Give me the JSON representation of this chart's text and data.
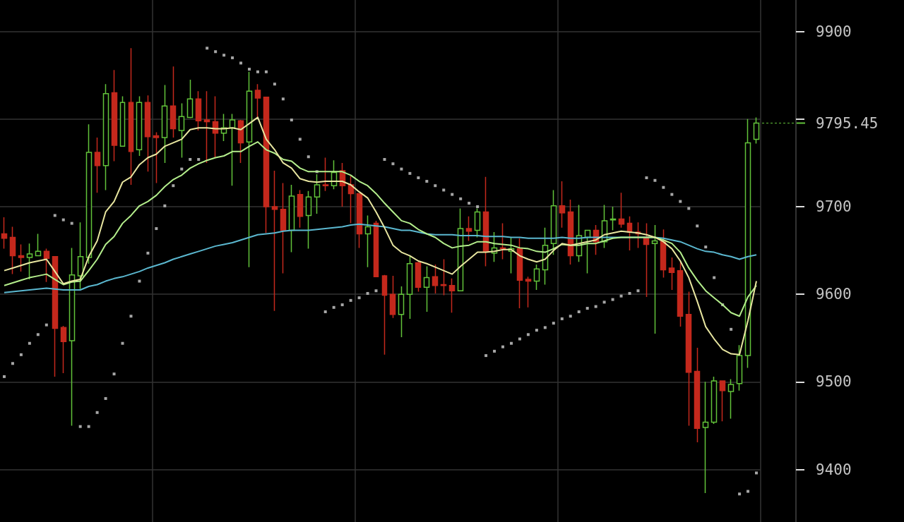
{
  "chart_data": {
    "type": "candlestick",
    "categories": [
      null,
      null,
      null,
      null,
      null,
      null,
      null,
      null,
      null,
      null,
      null,
      null,
      null,
      null,
      null,
      null,
      null,
      null,
      null,
      null,
      null,
      null,
      null,
      null,
      null,
      null,
      null,
      null,
      null,
      null,
      null,
      null,
      null,
      null,
      null,
      null,
      null,
      null,
      null,
      null,
      null,
      null,
      null,
      null,
      null,
      null,
      null,
      null,
      null,
      null,
      null,
      null,
      null,
      null,
      null,
      null,
      null,
      null,
      null,
      null,
      null,
      null,
      null,
      null,
      null,
      null,
      null,
      null,
      null,
      null,
      null,
      null,
      null,
      null,
      null,
      null,
      null,
      null,
      null,
      null,
      null,
      null,
      null,
      null,
      null,
      null,
      null,
      null,
      null,
      null
    ],
    "ohlc": [
      [
        9669,
        9688,
        9652,
        9664
      ],
      [
        9665,
        9677,
        9623,
        9644
      ],
      [
        9644,
        9657,
        9626,
        9642
      ],
      [
        9642,
        9658,
        9617,
        9646
      ],
      [
        9644,
        9669,
        9644,
        9649
      ],
      [
        9649,
        9652,
        9614,
        9641
      ],
      [
        9643,
        9643,
        9506,
        9561
      ],
      [
        9562,
        9564,
        9510,
        9546
      ],
      [
        9547,
        9653,
        9450,
        9622
      ],
      [
        9621,
        9682,
        9606,
        9643
      ],
      [
        9642,
        9794,
        9635,
        9762
      ],
      [
        9762,
        9779,
        9716,
        9747
      ],
      [
        9747,
        9840,
        9719,
        9829
      ],
      [
        9830,
        9856,
        9752,
        9770
      ],
      [
        9769,
        9826,
        9769,
        9819
      ],
      [
        9819,
        9881,
        9725,
        9763
      ],
      [
        9765,
        9826,
        9758,
        9819
      ],
      [
        9819,
        9827,
        9740,
        9780
      ],
      [
        9781,
        9785,
        9727,
        9779
      ],
      [
        9779,
        9839,
        9750,
        9815
      ],
      [
        9815,
        9860,
        9779,
        9789
      ],
      [
        9787,
        9818,
        9756,
        9803
      ],
      [
        9802,
        9845,
        9801,
        9823
      ],
      [
        9823,
        9832,
        9787,
        9798
      ],
      [
        9799,
        9832,
        9750,
        9797
      ],
      [
        9797,
        9826,
        9756,
        9784
      ],
      [
        9784,
        9806,
        9775,
        9790
      ],
      [
        9790,
        9806,
        9724,
        9799
      ],
      [
        9798,
        9799,
        9750,
        9773
      ],
      [
        9774,
        9854,
        9631,
        9832
      ],
      [
        9833,
        9840,
        9802,
        9824
      ],
      [
        9825,
        9825,
        9670,
        9700
      ],
      [
        9700,
        9741,
        9581,
        9697
      ],
      [
        9697,
        9727,
        9624,
        9673
      ],
      [
        9673,
        9725,
        9648,
        9712
      ],
      [
        9714,
        9719,
        9676,
        9689
      ],
      [
        9690,
        9718,
        9652,
        9711
      ],
      [
        9711,
        9737,
        9692,
        9725
      ],
      [
        9725,
        9756,
        9718,
        9724
      ],
      [
        9724,
        9753,
        9720,
        9739
      ],
      [
        9741,
        9750,
        9700,
        9724
      ],
      [
        9725,
        9735,
        9681,
        9715
      ],
      [
        9715,
        9715,
        9653,
        9669
      ],
      [
        9669,
        9690,
        9631,
        9677
      ],
      [
        9681,
        9684,
        9620,
        9620
      ],
      [
        9621,
        9622,
        9531,
        9599
      ],
      [
        9600,
        9621,
        9573,
        9577
      ],
      [
        9577,
        9609,
        9551,
        9600
      ],
      [
        9600,
        9644,
        9572,
        9635
      ],
      [
        9636,
        9637,
        9603,
        9608
      ],
      [
        9608,
        9632,
        9580,
        9619
      ],
      [
        9620,
        9634,
        9601,
        9610
      ],
      [
        9611,
        9640,
        9599,
        9610
      ],
      [
        9610,
        9618,
        9579,
        9604
      ],
      [
        9604,
        9698,
        9604,
        9675
      ],
      [
        9675,
        9689,
        9661,
        9672
      ],
      [
        9673,
        9698,
        9665,
        9694
      ],
      [
        9694,
        9734,
        9632,
        9649
      ],
      [
        9647,
        9671,
        9637,
        9653
      ],
      [
        9653,
        9681,
        9640,
        9652
      ],
      [
        9649,
        9665,
        9624,
        9652
      ],
      [
        9652,
        9664,
        9584,
        9616
      ],
      [
        9617,
        9620,
        9585,
        9615
      ],
      [
        9615,
        9634,
        9605,
        9629
      ],
      [
        9628,
        9676,
        9611,
        9656
      ],
      [
        9658,
        9719,
        9645,
        9701
      ],
      [
        9701,
        9729,
        9676,
        9693
      ],
      [
        9694,
        9708,
        9634,
        9644
      ],
      [
        9644,
        9702,
        9637,
        9667
      ],
      [
        9665,
        9673,
        9624,
        9673
      ],
      [
        9673,
        9679,
        9645,
        9660
      ],
      [
        9660,
        9702,
        9653,
        9684
      ],
      [
        9685,
        9700,
        9673,
        9686
      ],
      [
        9686,
        9716,
        9676,
        9680
      ],
      [
        9681,
        9689,
        9650,
        9671
      ],
      [
        9671,
        9682,
        9653,
        9669
      ],
      [
        9665,
        9681,
        9597,
        9657
      ],
      [
        9658,
        9679,
        9555,
        9661
      ],
      [
        9660,
        9674,
        9619,
        9628
      ],
      [
        9630,
        9642,
        9605,
        9625
      ],
      [
        9627,
        9637,
        9563,
        9575
      ],
      [
        9577,
        9603,
        9450,
        9511
      ],
      [
        9512,
        9539,
        9431,
        9447
      ],
      [
        9448,
        9500,
        9373,
        9454
      ],
      [
        9454,
        9506,
        9452,
        9501
      ],
      [
        9501,
        9501,
        9455,
        9490
      ],
      [
        9489,
        9503,
        9458,
        9497
      ],
      [
        9498,
        9542,
        9490,
        9530
      ],
      [
        9530,
        9800,
        9516,
        9773
      ],
      [
        9777,
        9802,
        9772,
        9795.45
      ]
    ],
    "colors": [
      "#c4281c",
      "#c4281c",
      "#c4281c",
      "#62c23a",
      "#62c23a",
      "#c4281c",
      "#c4281c",
      "#c4281c",
      "#62c23a",
      "#62c23a",
      "#62c23a",
      "#c4281c",
      "#62c23a",
      "#c4281c",
      "#62c23a",
      "#c4281c",
      "#62c23a",
      "#c4281c",
      "#c4281c",
      "#62c23a",
      "#c4281c",
      "#62c23a",
      "#62c23a",
      "#c4281c",
      "#c4281c",
      "#c4281c",
      "#62c23a",
      "#62c23a",
      "#c4281c",
      "#62c23a",
      "#c4281c",
      "#c4281c",
      "#c4281c",
      "#c4281c",
      "#62c23a",
      "#c4281c",
      "#62c23a",
      "#62c23a",
      "#c4281c",
      "#62c23a",
      "#c4281c",
      "#c4281c",
      "#c4281c",
      "#62c23a",
      "#c4281c",
      "#c4281c",
      "#c4281c",
      "#62c23a",
      "#62c23a",
      "#c4281c",
      "#62c23a",
      "#c4281c",
      "#c4281c",
      "#c4281c",
      "#62c23a",
      "#c4281c",
      "#62c23a",
      "#c4281c",
      "#62c23a",
      "#c4281c",
      "#62c23a",
      "#c4281c",
      "#c4281c",
      "#62c23a",
      "#62c23a",
      "#62c23a",
      "#c4281c",
      "#c4281c",
      "#62c23a",
      "#62c23a",
      "#c4281c",
      "#62c23a",
      "#62c23a",
      "#c4281c",
      "#c4281c",
      "#c4281c",
      "#c4281c",
      "#62c23a",
      "#c4281c",
      "#c4281c",
      "#c4281c",
      "#c4281c",
      "#c4281c",
      "#62c23a",
      "#62c23a",
      "#c4281c",
      "#62c23a",
      "#62c23a",
      "#62c23a",
      "#62c23a"
    ],
    "series": [
      {
        "type": "line",
        "color": "#5bb8d0",
        "values": [
          9602,
          9603,
          9604,
          9605,
          9606,
          9607,
          9606,
          9605,
          9605,
          9605,
          9609,
          9611,
          9615,
          9618,
          9620,
          9623,
          9626,
          9630,
          9633,
          9636,
          9640,
          9643,
          9646,
          9649,
          9652,
          9655,
          9657,
          9659,
          9662,
          9665,
          9668,
          9669,
          9670,
          9672,
          9673,
          9673,
          9673,
          9674,
          9675,
          9676,
          9677,
          9679,
          9680,
          9679,
          9678,
          9677,
          9675,
          9673,
          9673,
          9671,
          9669,
          9668,
          9668,
          9668,
          9667,
          9667,
          9667,
          9666,
          9666,
          9666,
          9665,
          9665,
          9664,
          9664,
          9664,
          9664,
          9665,
          9664,
          9664,
          9665,
          9665,
          9665,
          9665,
          9665,
          9665,
          9665,
          9665,
          9665,
          9664,
          9662,
          9660,
          9656,
          9652,
          9649,
          9648,
          9645,
          9643,
          9640,
          9643,
          9645
        ]
      },
      {
        "type": "line",
        "color": "#b4ee8c",
        "values": [
          9610,
          9613,
          9616,
          9619,
          9621,
          9623,
          9617,
          9611,
          9614,
          9615,
          9627,
          9640,
          9657,
          9666,
          9681,
          9690,
          9701,
          9706,
          9713,
          9723,
          9731,
          9736,
          9744,
          9749,
          9753,
          9756,
          9758,
          9763,
          9763,
          9769,
          9774,
          9765,
          9761,
          9754,
          9752,
          9744,
          9740,
          9740,
          9740,
          9740,
          9740,
          9736,
          9729,
          9724,
          9715,
          9704,
          9694,
          9684,
          9681,
          9674,
          9669,
          9665,
          9658,
          9653,
          9655,
          9656,
          9660,
          9660,
          9658,
          9657,
          9656,
          9653,
          9652,
          9649,
          9648,
          9652,
          9657,
          9656,
          9656,
          9658,
          9658,
          9661,
          9664,
          9665,
          9665,
          9665,
          9665,
          9665,
          9662,
          9658,
          9648,
          9630,
          9616,
          9604,
          9596,
          9588,
          9579,
          9575,
          9597,
          9610
        ]
      },
      {
        "type": "line",
        "color": "#e8e6a0",
        "values": [
          9627,
          9630,
          9633,
          9636,
          9638,
          9640,
          9626,
          9612,
          9615,
          9617,
          9643,
          9661,
          9694,
          9706,
          9728,
          9734,
          9748,
          9756,
          9760,
          9769,
          9773,
          9777,
          9788,
          9790,
          9790,
          9789,
          9789,
          9790,
          9788,
          9795,
          9802,
          9777,
          9765,
          9750,
          9744,
          9732,
          9729,
          9728,
          9729,
          9729,
          9729,
          9725,
          9717,
          9710,
          9694,
          9676,
          9656,
          9648,
          9644,
          9638,
          9635,
          9631,
          9627,
          9623,
          9632,
          9640,
          9648,
          9648,
          9649,
          9651,
          9651,
          9644,
          9640,
          9637,
          9640,
          9650,
          9658,
          9656,
          9658,
          9660,
          9662,
          9668,
          9670,
          9672,
          9671,
          9670,
          9668,
          9665,
          9660,
          9652,
          9638,
          9619,
          9592,
          9563,
          9549,
          9537,
          9532,
          9531,
          9570,
          9615
        ]
      },
      {
        "type": "scatter",
        "marker": "square",
        "color": "#cfcfcf",
        "values": [
          9506,
          9521,
          9531,
          9544,
          9554,
          9565,
          9690,
          9685,
          9681,
          9449,
          9449,
          9465,
          9481,
          9509,
          9544,
          9575,
          9615,
          9647,
          9675,
          9701,
          9724,
          9743,
          9754,
          9754,
          9881,
          9877,
          9873,
          9870,
          9864,
          9857,
          9854,
          9854,
          9840,
          9823,
          9799,
          9777,
          9757,
          9740,
          9580,
          9585,
          9588,
          9593,
          9596,
          9601,
          9604,
          9754,
          9749,
          9743,
          9738,
          9733,
          9729,
          9724,
          9719,
          9714,
          9709,
          9704,
          9700,
          9530,
          9535,
          9540,
          9544,
          9549,
          9554,
          9559,
          9562,
          9567,
          9572,
          9575,
          9580,
          9584,
          9586,
          9591,
          9594,
          9598,
          9601,
          9604,
          9733,
          9730,
          9722,
          9714,
          9706,
          9698,
          9678,
          9654,
          9619,
          9588,
          9560,
          9372,
          9375,
          9396
        ]
      }
    ],
    "ylim": [
      9340,
      9936
    ],
    "yticks": [
      9400,
      9500,
      9600,
      9700,
      {
        "value": 9800,
        "label": null
      },
      9900
    ],
    "tick_labels": "y",
    "grid": true,
    "ref_lines": [
      {
        "axis": "y",
        "value": 9795.45,
        "label": "9795.45",
        "color": "#62c23a",
        "line_style": "dashed"
      }
    ]
  }
}
